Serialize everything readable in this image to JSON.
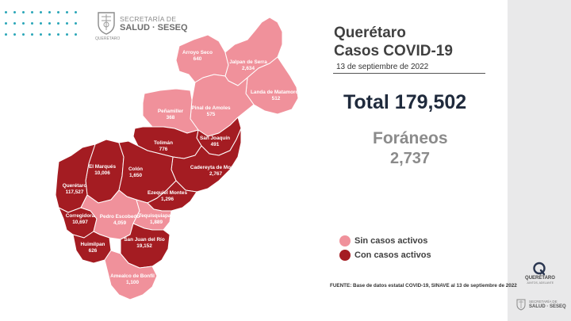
{
  "header": {
    "org_line1": "SECRETARÍA DE",
    "org_line2": "SALUD · SESEQ",
    "org_line3": "QUERÉTARO"
  },
  "title": {
    "line1": "Querétaro",
    "line2": "Casos COVID-19",
    "date": "13 de septiembre de 2022"
  },
  "totals": {
    "total_label": "Total 179,502",
    "foraneos_label": "Foráneos",
    "foraneos_value": "2,737"
  },
  "legend": {
    "no_active": "Sin casos activos",
    "active": "Con casos activos",
    "no_active_color": "#f0919b",
    "active_color": "#a41c22"
  },
  "source": "FUENTE: Base de datos estatal COVID-19, SINAVE  al 13 de septiembre de 2022",
  "side_logo": {
    "name": "QUERÉTARO",
    "tagline": "JUNTOS, ADELANTE",
    "org_line1": "SECRETARÍA DE",
    "org_line2": "SALUD · SESEQ"
  },
  "municipalities": [
    {
      "key": "arroyo_seco",
      "name": "Arroyo Seco",
      "cases": "640",
      "status": "no_active"
    },
    {
      "key": "jalpan",
      "name": "Jalpan de Serra",
      "cases": "2,634",
      "status": "no_active"
    },
    {
      "key": "landa",
      "name": "Landa de Matamoros",
      "cases": "512",
      "status": "no_active"
    },
    {
      "key": "pinal",
      "name": "Pinal de Amoles",
      "cases": "575",
      "status": "no_active"
    },
    {
      "key": "penamiller",
      "name": "Peñamiller",
      "cases": "368",
      "status": "no_active"
    },
    {
      "key": "san_joaquin",
      "name": "San Joaquín",
      "cases": "491",
      "status": "active"
    },
    {
      "key": "toliman",
      "name": "Tolimán",
      "cases": "776",
      "status": "active"
    },
    {
      "key": "cadereyta",
      "name": "Cadereyta de Montes",
      "cases": "2,767",
      "status": "active"
    },
    {
      "key": "el_marques",
      "name": "El Marqués",
      "cases": "10,006",
      "status": "active"
    },
    {
      "key": "colon",
      "name": "Colón",
      "cases": "1,650",
      "status": "active"
    },
    {
      "key": "queretaro",
      "name": "Querétaro",
      "cases": "117,527",
      "status": "active"
    },
    {
      "key": "ezequiel",
      "name": "Ezequiel Montes",
      "cases": "1,296",
      "status": "active"
    },
    {
      "key": "corregidora",
      "name": "Corregidora",
      "cases": "10,697",
      "status": "active"
    },
    {
      "key": "pedro",
      "name": "Pedro Escobedo",
      "cases": "4,059",
      "status": "no_active"
    },
    {
      "key": "tequisquiapan",
      "name": "Tequisquiapan",
      "cases": "1,889",
      "status": "no_active"
    },
    {
      "key": "huimilpan",
      "name": "Huimilpan",
      "cases": "626",
      "status": "active"
    },
    {
      "key": "san_juan",
      "name": "San Juan del Río",
      "cases": "19,152",
      "status": "active"
    },
    {
      "key": "amealco",
      "name": "Amealco de Bonfil",
      "cases": "1,100",
      "status": "no_active"
    }
  ]
}
